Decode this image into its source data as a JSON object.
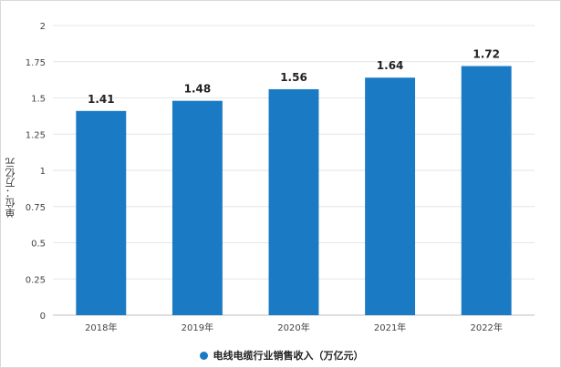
{
  "chart_data": {
    "type": "bar",
    "title": "",
    "xlabel": "",
    "ylabel": "单位：万亿元",
    "categories": [
      "2018年",
      "2019年",
      "2020年",
      "2021年",
      "2022年"
    ],
    "series": [
      {
        "name": "电线电缆行业销售收入（万亿元）",
        "values": [
          1.41,
          1.48,
          1.56,
          1.64,
          1.72
        ],
        "labels": [
          "1.41",
          "1.48",
          "1.56",
          "1.64",
          "1.72"
        ],
        "color": "#1a7ac4"
      }
    ],
    "ylim": [
      0,
      2
    ],
    "yticks": [
      "0",
      "0.25",
      "0.5",
      "0.75",
      "1",
      "1.25",
      "1.5",
      "1.75",
      "2"
    ],
    "yticks_values": [
      0,
      0.25,
      0.5,
      0.75,
      1,
      1.25,
      1.5,
      1.75,
      2
    ],
    "grid": true,
    "legend_position": "bottom"
  },
  "colors": {
    "bar": "#1a7ac4",
    "grid": "#e6e6e6",
    "axis_text": "#444444",
    "label_text": "#222222"
  }
}
